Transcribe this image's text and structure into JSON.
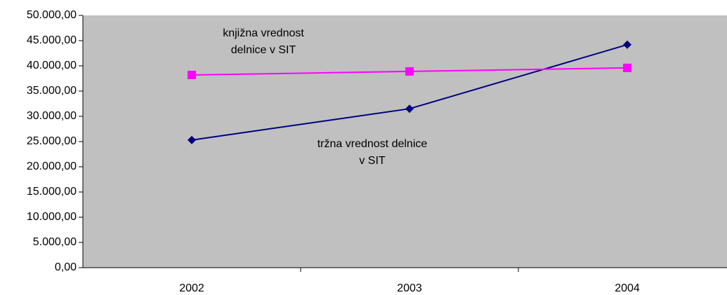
{
  "chart_data": {
    "type": "line",
    "categories": [
      "2002",
      "2003",
      "2004"
    ],
    "series": [
      {
        "name": "tržna vrednost delnice v SIT",
        "color": "#000080",
        "marker": "diamond",
        "values": [
          25300,
          31500,
          44200
        ]
      },
      {
        "name": "knjižna vrednost delnice v SIT",
        "color": "#ff00ff",
        "marker": "square",
        "values": [
          38200,
          38900,
          39600
        ]
      }
    ],
    "annotations": [
      {
        "lines": [
          "knjižna vrednost",
          "delnice v SIT"
        ]
      },
      {
        "lines": [
          "tržna vrednost delnice",
          "v SIT"
        ]
      }
    ],
    "ylim": [
      0,
      50000
    ],
    "yticks": [
      {
        "value": 0,
        "label": "0,00"
      },
      {
        "value": 5000,
        "label": "5.000,00"
      },
      {
        "value": 10000,
        "label": "10.000,00"
      },
      {
        "value": 15000,
        "label": "15.000,00"
      },
      {
        "value": 20000,
        "label": "20.000,00"
      },
      {
        "value": 25000,
        "label": "25.000,00"
      },
      {
        "value": 30000,
        "label": "30.000,00"
      },
      {
        "value": 35000,
        "label": "35.000,00"
      },
      {
        "value": 40000,
        "label": "40.000,00"
      },
      {
        "value": 45000,
        "label": "45.000,00"
      },
      {
        "value": 50000,
        "label": "50.000,00"
      }
    ],
    "plot_background": "#c0c0c0"
  }
}
